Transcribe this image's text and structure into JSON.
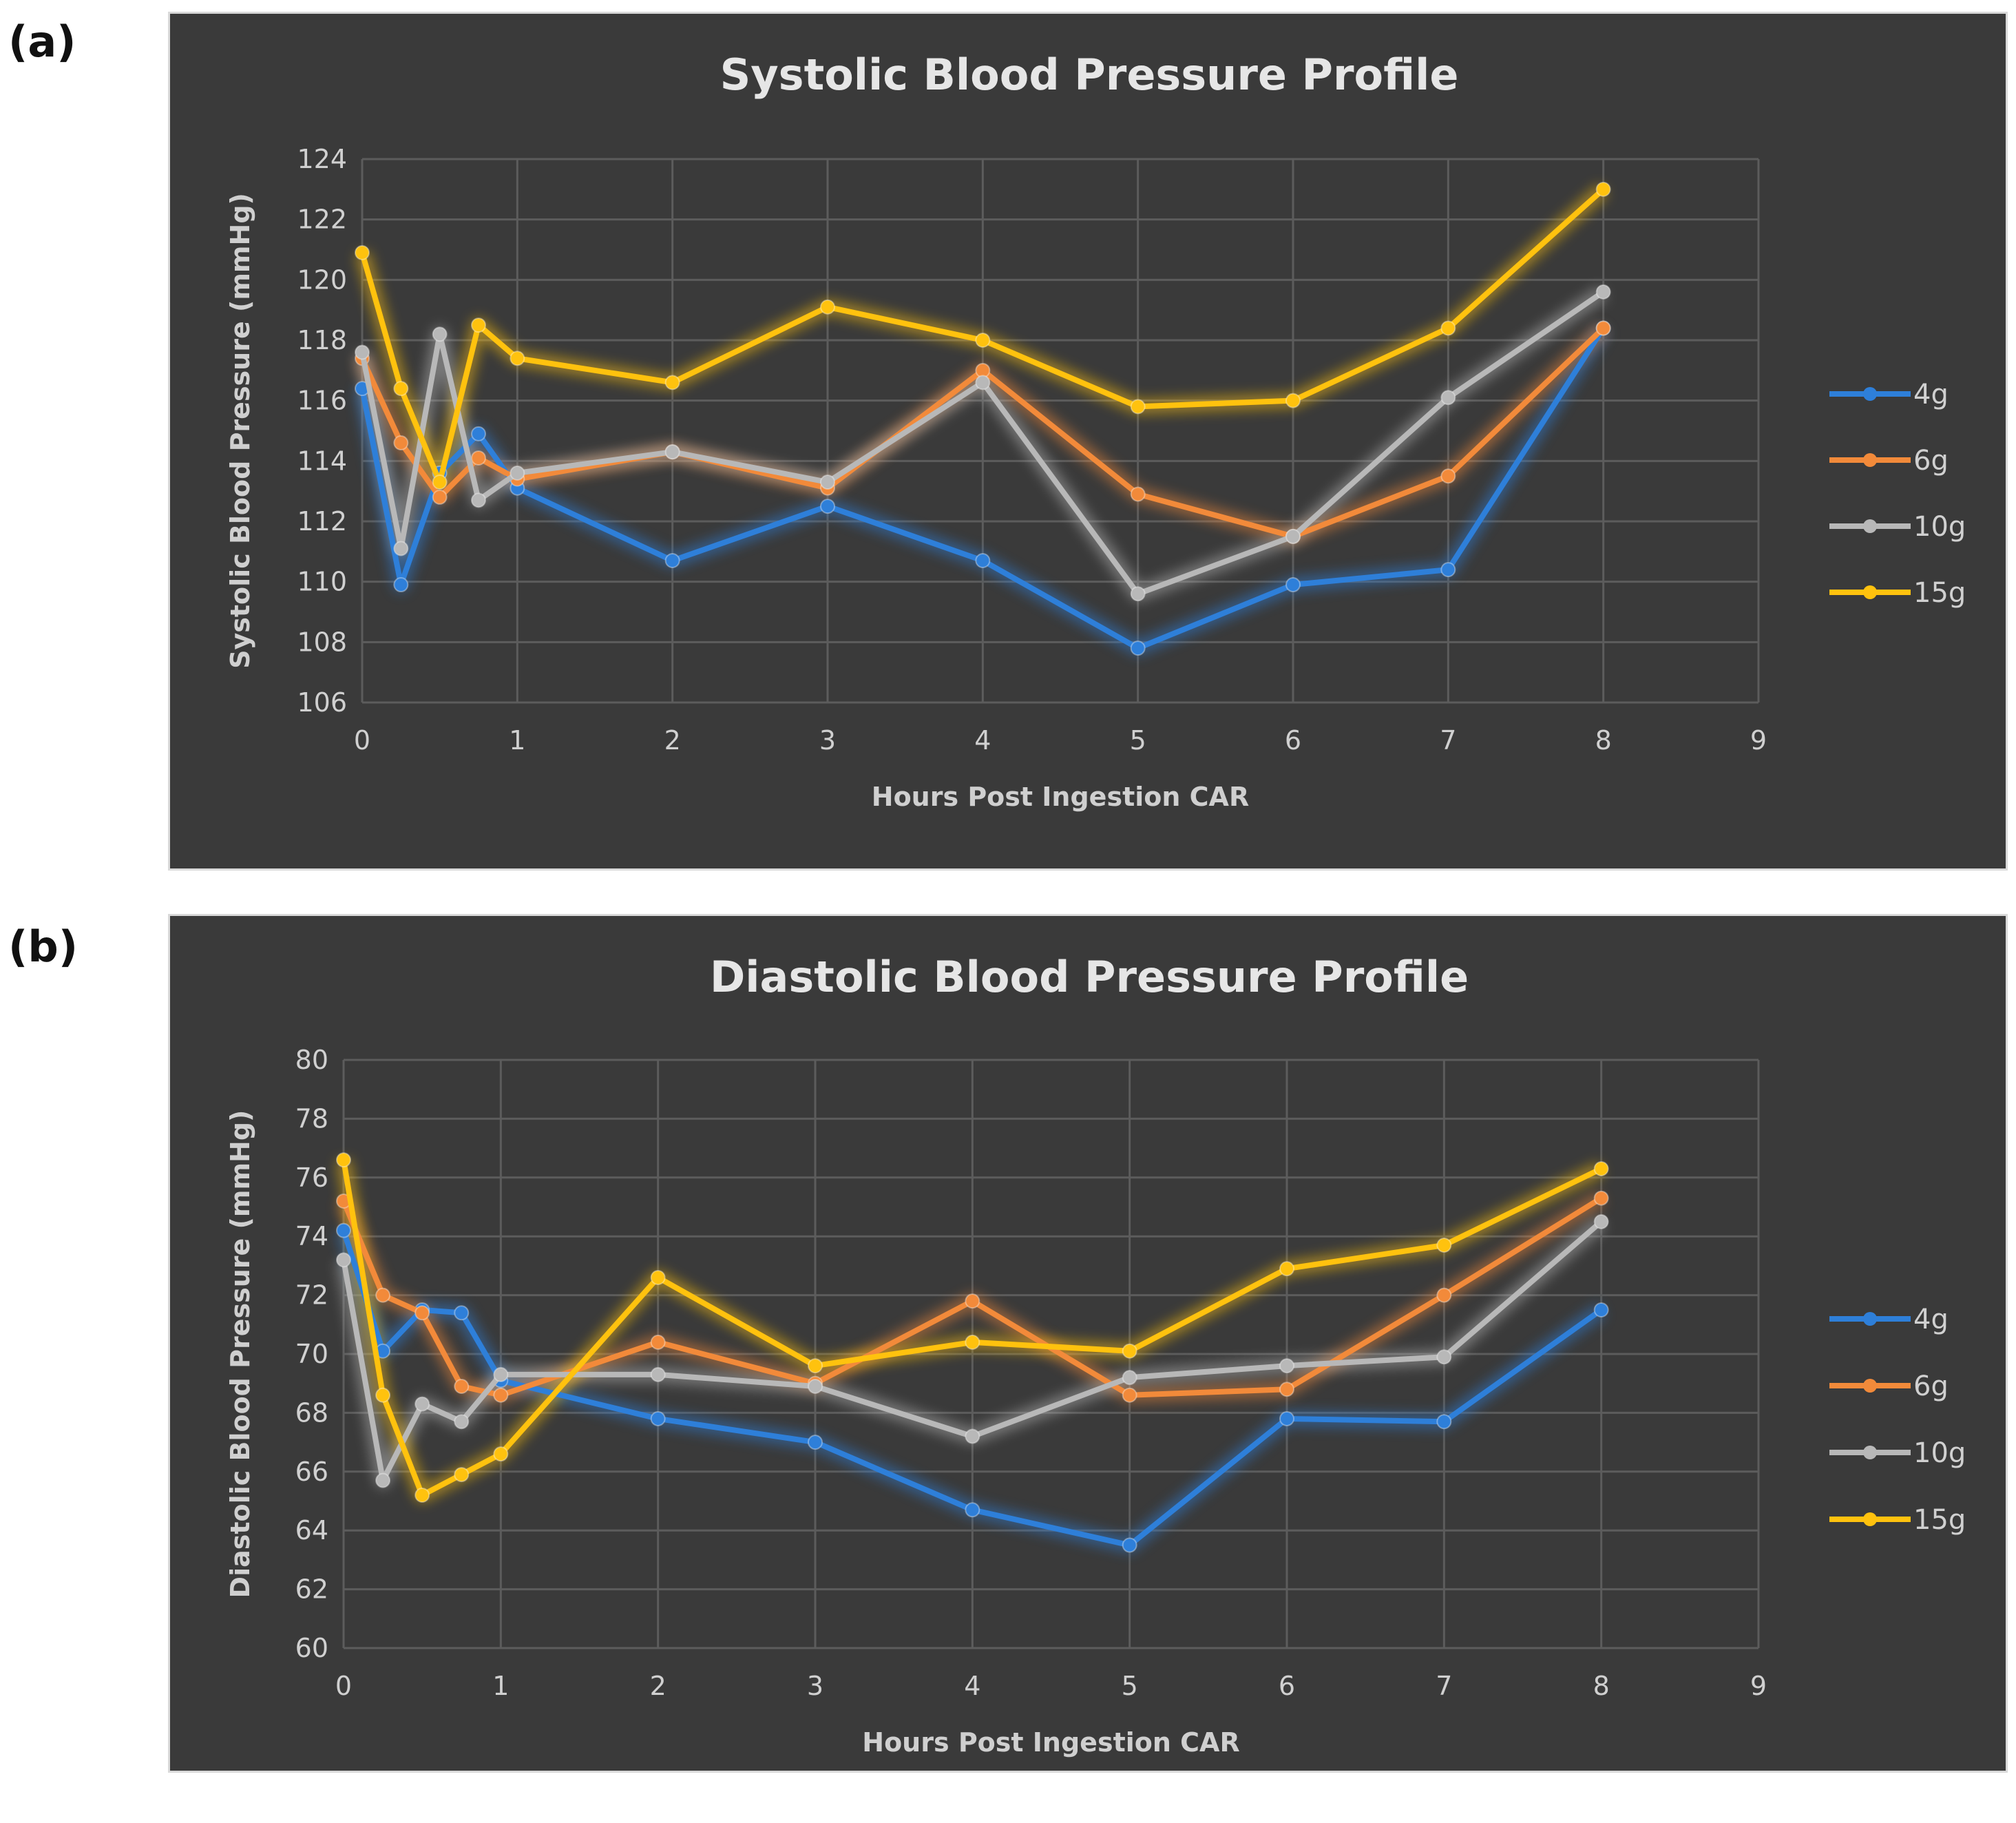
{
  "panel_labels": {
    "a": "(a)",
    "b": "(b)"
  },
  "chart_data": [
    {
      "type": "line",
      "title": "Systolic Blood Pressure Profile",
      "xlabel": "Hours Post Ingestion CAR",
      "ylabel": "Systolic Blood Pressure (mmHg)",
      "xlim": [
        0,
        9
      ],
      "ylim": [
        106,
        124
      ],
      "xticks": [
        0,
        1,
        2,
        3,
        4,
        5,
        6,
        7,
        8,
        9
      ],
      "yticks": [
        106,
        108,
        110,
        112,
        114,
        116,
        118,
        120,
        122,
        124
      ],
      "grid": true,
      "legend_position": "right",
      "series": [
        {
          "name": "4g",
          "color": "#2e7fd9",
          "x": [
            0,
            0.25,
            0.5,
            0.75,
            1,
            2,
            3,
            4,
            5,
            6,
            7,
            8
          ],
          "y": [
            116.4,
            109.9,
            113.6,
            114.9,
            113.1,
            110.7,
            112.5,
            110.7,
            107.8,
            109.9,
            110.4,
            118.4
          ]
        },
        {
          "name": "6g",
          "color": "#f28a3a",
          "x": [
            0,
            0.25,
            0.5,
            0.75,
            1,
            2,
            3,
            4,
            5,
            6,
            7,
            8
          ],
          "y": [
            117.4,
            114.6,
            112.8,
            114.1,
            113.4,
            114.3,
            113.1,
            117.0,
            112.9,
            111.5,
            113.5,
            118.4
          ]
        },
        {
          "name": "10g",
          "color": "#b8b8b8",
          "x": [
            0,
            0.25,
            0.5,
            0.75,
            1,
            2,
            3,
            4,
            5,
            6,
            7,
            8
          ],
          "y": [
            117.6,
            111.1,
            118.2,
            112.7,
            113.6,
            114.3,
            113.3,
            116.6,
            109.6,
            111.5,
            116.1,
            119.6
          ]
        },
        {
          "name": "15g",
          "color": "#ffc20e",
          "x": [
            0,
            0.25,
            0.5,
            0.75,
            1,
            2,
            3,
            4,
            5,
            6,
            7,
            8
          ],
          "y": [
            120.9,
            116.4,
            113.3,
            118.5,
            117.4,
            116.6,
            119.1,
            118.0,
            115.8,
            116.0,
            118.4,
            123.0
          ]
        }
      ]
    },
    {
      "type": "line",
      "title": "Diastolic Blood Pressure Profile",
      "xlabel": "Hours Post Ingestion CAR",
      "ylabel": "Diastolic Blood Pressure (mmHg)",
      "xlim": [
        0,
        9
      ],
      "ylim": [
        60,
        80
      ],
      "xticks": [
        0,
        1,
        2,
        3,
        4,
        5,
        6,
        7,
        8,
        9
      ],
      "yticks": [
        60,
        62,
        64,
        66,
        68,
        70,
        72,
        74,
        76,
        78,
        80
      ],
      "grid": true,
      "legend_position": "right",
      "series": [
        {
          "name": "4g",
          "color": "#2e7fd9",
          "x": [
            0,
            0.25,
            0.5,
            0.75,
            1,
            2,
            3,
            4,
            5,
            6,
            7,
            8
          ],
          "y": [
            74.2,
            70.1,
            71.5,
            71.4,
            69.1,
            67.8,
            67.0,
            64.7,
            63.5,
            67.8,
            67.7,
            71.5
          ]
        },
        {
          "name": "6g",
          "color": "#f28a3a",
          "x": [
            0,
            0.25,
            0.5,
            0.75,
            1,
            2,
            3,
            4,
            5,
            6,
            7,
            8
          ],
          "y": [
            75.2,
            72.0,
            71.4,
            68.9,
            68.6,
            70.4,
            69.0,
            71.8,
            68.6,
            68.8,
            72.0,
            75.3
          ]
        },
        {
          "name": "10g",
          "color": "#b8b8b8",
          "x": [
            0,
            0.25,
            0.5,
            0.75,
            1,
            2,
            3,
            4,
            5,
            6,
            7,
            8
          ],
          "y": [
            73.2,
            65.7,
            68.3,
            67.7,
            69.3,
            69.3,
            68.9,
            67.2,
            69.2,
            69.6,
            69.9,
            74.5
          ]
        },
        {
          "name": "15g",
          "color": "#ffc20e",
          "x": [
            0,
            0.25,
            0.5,
            0.75,
            1,
            2,
            3,
            4,
            5,
            6,
            7,
            8
          ],
          "y": [
            76.6,
            68.6,
            65.2,
            65.9,
            66.6,
            72.6,
            69.6,
            70.4,
            70.1,
            72.9,
            73.7,
            76.3
          ]
        }
      ]
    }
  ]
}
